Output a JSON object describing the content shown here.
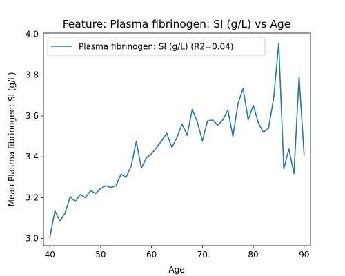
{
  "chart_data": {
    "type": "line",
    "title": "Feature: Plasma fibrinogen:  SI (g/L) vs Age",
    "xlabel": "Age",
    "ylabel": "Mean Plasma fibrinogen:  SI (g/L)",
    "xlim": [
      38.75,
      91.25
    ],
    "ylim": [
      2.965,
      4.005
    ],
    "xticks": [
      40,
      50,
      60,
      70,
      80,
      90
    ],
    "yticks": [
      3.0,
      3.2,
      3.4,
      3.6,
      3.8,
      4.0
    ],
    "xtick_labels": [
      "40",
      "50",
      "60",
      "70",
      "80",
      "90"
    ],
    "ytick_labels": [
      "3.0",
      "3.2",
      "3.4",
      "3.6",
      "3.8",
      "4.0"
    ],
    "grid": false,
    "legend_position": "upper-left",
    "series": [
      {
        "name": "Plasma fibrinogen:  SI (g/L) (R2=0.04)",
        "color": "#1f77b4",
        "x": [
          40,
          41,
          42,
          43,
          44,
          45,
          46,
          47,
          48,
          49,
          50,
          51,
          52,
          53,
          54,
          55,
          56,
          57,
          58,
          59,
          60,
          61,
          62,
          63,
          64,
          65,
          66,
          67,
          68,
          69,
          70,
          71,
          72,
          73,
          74,
          75,
          76,
          77,
          78,
          79,
          80,
          81,
          82,
          83,
          84,
          85,
          86,
          87,
          88,
          89,
          90
        ],
        "y": [
          3.005,
          3.135,
          3.085,
          3.125,
          3.205,
          3.18,
          3.215,
          3.2,
          3.235,
          3.22,
          3.245,
          3.258,
          3.25,
          3.258,
          3.315,
          3.3,
          3.355,
          3.475,
          3.345,
          3.395,
          3.415,
          3.445,
          3.48,
          3.515,
          3.445,
          3.495,
          3.56,
          3.505,
          3.632,
          3.57,
          3.477,
          3.575,
          3.58,
          3.555,
          3.58,
          3.628,
          3.5,
          3.66,
          3.735,
          3.58,
          3.652,
          3.565,
          3.52,
          3.54,
          3.685,
          3.955,
          3.34,
          3.438,
          3.318,
          3.792,
          3.408
        ]
      }
    ]
  }
}
